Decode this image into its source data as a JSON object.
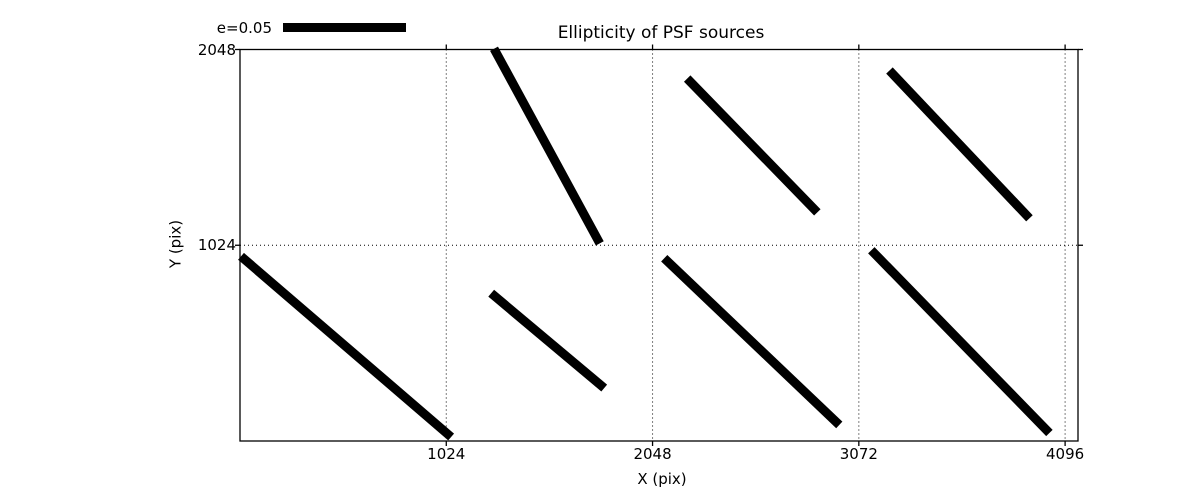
{
  "figure": {
    "background_color": "#ffffff",
    "foreground_color": "#000000"
  },
  "chart_data": {
    "type": "line",
    "subtype": "ellipticity-whisker-plot",
    "title": "Ellipticity of PSF sources",
    "xlabel": "X (pix)",
    "ylabel": "Y (pix)",
    "xlim": [
      0,
      4160
    ],
    "ylim": [
      0,
      2048
    ],
    "xticks": [
      1024,
      2048,
      3072,
      4096
    ],
    "yticks": [
      1024,
      2048
    ],
    "grid": {
      "style": "dotted",
      "x_lines": [
        1024,
        2048,
        3072,
        4096
      ],
      "y_lines": [
        1024
      ]
    },
    "legend": {
      "label": "e=0.05",
      "position": "top-left-above-axes",
      "bar_color": "#000000",
      "bar_data_length": 610
    },
    "series_color": "#000000",
    "whisker_stroke_width": 9,
    "segments": [
      {
        "x1": 5,
        "y1": 966,
        "x2": 1048,
        "y2": 21
      },
      {
        "x1": 1261,
        "y1": 2052,
        "x2": 1786,
        "y2": 1034
      },
      {
        "x1": 1247,
        "y1": 773,
        "x2": 1808,
        "y2": 277
      },
      {
        "x1": 2220,
        "y1": 1896,
        "x2": 2866,
        "y2": 1196
      },
      {
        "x1": 2106,
        "y1": 956,
        "x2": 2975,
        "y2": 84
      },
      {
        "x1": 3224,
        "y1": 1938,
        "x2": 3919,
        "y2": 1165
      },
      {
        "x1": 3134,
        "y1": 998,
        "x2": 4018,
        "y2": 42
      }
    ]
  }
}
